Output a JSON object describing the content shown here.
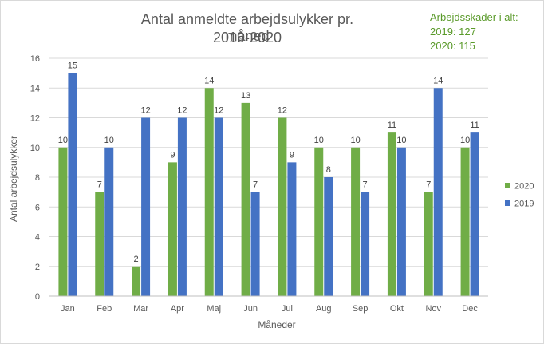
{
  "chart_data": {
    "type": "bar",
    "title": "Antal anmeldte arbejdsulykker pr. måned",
    "subtitle": "2019-2020",
    "xlabel": "Måneder",
    "ylabel": "Antal arbejdsulykker",
    "ylim": [
      0,
      16
    ],
    "yticks": [
      "0",
      "2",
      "4",
      "6",
      "8",
      "10",
      "12",
      "14",
      "16"
    ],
    "grid": true,
    "legend_position": "right",
    "categories": [
      "Jan",
      "Feb",
      "Mar",
      "Apr",
      "Maj",
      "Jun",
      "Jul",
      "Aug",
      "Sep",
      "Okt",
      "Nov",
      "Dec"
    ],
    "series": [
      {
        "name": "2020",
        "color": "#70ad47",
        "values": [
          10,
          7,
          2,
          9,
          14,
          13,
          12,
          10,
          10,
          11,
          7,
          10
        ]
      },
      {
        "name": "2019",
        "color": "#4472c4",
        "values": [
          15,
          10,
          12,
          12,
          12,
          7,
          9,
          8,
          7,
          10,
          14,
          11
        ]
      }
    ]
  },
  "totals": {
    "heading": "Arbejdsskader i alt:",
    "line_2019": "2019:  127",
    "line_2020": "2020:  115"
  }
}
